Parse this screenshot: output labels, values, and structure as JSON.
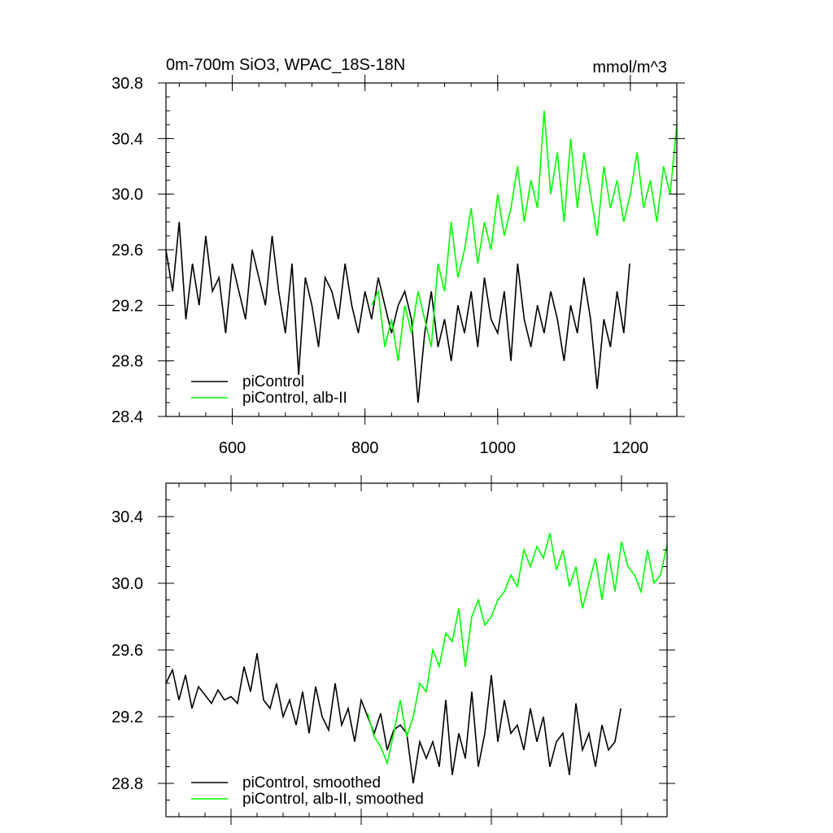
{
  "chart_data": [
    {
      "type": "line",
      "title": "0m-700m SiO3, WPAC_18S-18N",
      "units": "mmol/m^3",
      "xlim": [
        500,
        1270
      ],
      "ylim": [
        28.4,
        30.8
      ],
      "xticks": [
        600,
        800,
        1000,
        1200
      ],
      "xtick_labels": [
        "600",
        "800",
        "1000",
        "1200"
      ],
      "yticks": [
        28.4,
        28.8,
        29.2,
        29.6,
        30.0,
        30.4,
        30.8
      ],
      "ytick_labels": [
        "28.4",
        "28.8",
        "29.2",
        "29.6",
        "30.0",
        "30.4",
        "30.8"
      ],
      "legend_position": "bottom-left",
      "series": [
        {
          "name": "piControl",
          "color": "#000000",
          "x": [
            500,
            510,
            520,
            530,
            540,
            550,
            560,
            570,
            580,
            590,
            600,
            610,
            620,
            630,
            640,
            650,
            660,
            670,
            680,
            690,
            700,
            710,
            720,
            730,
            740,
            750,
            760,
            770,
            780,
            790,
            800,
            810,
            820,
            830,
            840,
            850,
            860,
            870,
            880,
            890,
            900,
            910,
            920,
            930,
            940,
            950,
            960,
            970,
            980,
            990,
            1000,
            1010,
            1020,
            1030,
            1040,
            1050,
            1060,
            1070,
            1080,
            1090,
            1100,
            1110,
            1120,
            1130,
            1140,
            1150,
            1160,
            1170,
            1180,
            1190,
            1199
          ],
          "values": [
            29.6,
            29.3,
            29.8,
            29.1,
            29.5,
            29.2,
            29.7,
            29.3,
            29.4,
            29.0,
            29.5,
            29.3,
            29.1,
            29.6,
            29.4,
            29.2,
            29.7,
            29.3,
            29.0,
            29.5,
            28.7,
            29.4,
            29.2,
            28.9,
            29.4,
            29.3,
            29.1,
            29.5,
            29.2,
            29.0,
            29.3,
            29.1,
            29.4,
            29.2,
            29.0,
            29.2,
            29.3,
            29.1,
            28.5,
            29.0,
            29.3,
            28.9,
            29.1,
            28.8,
            29.2,
            29.0,
            29.3,
            28.9,
            29.4,
            29.1,
            29.0,
            29.3,
            28.8,
            29.5,
            29.1,
            28.9,
            29.2,
            29.0,
            29.3,
            29.1,
            28.8,
            29.2,
            29.0,
            29.4,
            29.1,
            28.6,
            29.1,
            28.9,
            29.3,
            29.0,
            29.5
          ]
        },
        {
          "name": "piControl, alb-II",
          "color": "#00ff00",
          "x": [
            810,
            820,
            830,
            840,
            850,
            860,
            870,
            880,
            890,
            900,
            910,
            920,
            930,
            940,
            950,
            960,
            970,
            980,
            990,
            1000,
            1010,
            1020,
            1030,
            1040,
            1050,
            1060,
            1070,
            1080,
            1090,
            1100,
            1110,
            1120,
            1130,
            1140,
            1150,
            1160,
            1170,
            1180,
            1190,
            1200,
            1210,
            1220,
            1230,
            1240,
            1250,
            1260,
            1270
          ],
          "values": [
            29.2,
            29.3,
            28.9,
            29.1,
            28.8,
            29.2,
            29.0,
            29.3,
            29.1,
            28.9,
            29.5,
            29.3,
            29.8,
            29.4,
            29.6,
            29.9,
            29.5,
            29.8,
            29.6,
            30.0,
            29.7,
            29.9,
            30.2,
            29.8,
            30.1,
            29.9,
            30.6,
            30.0,
            30.3,
            29.8,
            30.4,
            29.9,
            30.3,
            30.0,
            29.7,
            30.2,
            29.9,
            30.1,
            29.8,
            30.0,
            30.3,
            29.9,
            30.1,
            29.8,
            30.2,
            30.0,
            30.5
          ]
        }
      ]
    },
    {
      "type": "line",
      "title": "",
      "units": "",
      "xlim": [
        500,
        1270
      ],
      "ylim": [
        28.6,
        30.6
      ],
      "xticks": [
        600,
        800,
        1000,
        1200
      ],
      "xtick_labels": [
        "",
        "",
        "",
        ""
      ],
      "yticks": [
        28.8,
        29.2,
        29.6,
        30.0,
        30.4
      ],
      "ytick_labels": [
        "28.8",
        "29.2",
        "29.6",
        "30.0",
        "30.4"
      ],
      "legend_position": "bottom-left",
      "series": [
        {
          "name": "piControl, smoothed",
          "color": "#000000",
          "x": [
            500,
            510,
            520,
            530,
            540,
            550,
            560,
            570,
            580,
            590,
            600,
            610,
            620,
            630,
            640,
            650,
            660,
            670,
            680,
            690,
            700,
            710,
            720,
            730,
            740,
            750,
            760,
            770,
            780,
            790,
            800,
            810,
            820,
            830,
            840,
            850,
            860,
            870,
            880,
            890,
            900,
            910,
            920,
            930,
            940,
            950,
            960,
            970,
            980,
            990,
            1000,
            1010,
            1020,
            1030,
            1040,
            1050,
            1060,
            1070,
            1080,
            1090,
            1100,
            1110,
            1120,
            1130,
            1140,
            1150,
            1160,
            1170,
            1180,
            1190,
            1199
          ],
          "values": [
            29.4,
            29.48,
            29.3,
            29.45,
            29.25,
            29.38,
            29.33,
            29.28,
            29.36,
            29.3,
            29.32,
            29.28,
            29.5,
            29.35,
            29.58,
            29.3,
            29.25,
            29.4,
            29.2,
            29.3,
            29.15,
            29.35,
            29.1,
            29.38,
            29.2,
            29.12,
            29.4,
            29.15,
            29.25,
            29.05,
            29.3,
            29.2,
            29.1,
            29.22,
            29.0,
            29.12,
            29.15,
            29.1,
            28.8,
            29.05,
            28.95,
            29.05,
            28.9,
            29.3,
            28.85,
            29.1,
            28.95,
            29.35,
            28.9,
            29.1,
            29.45,
            29.05,
            29.3,
            29.1,
            29.15,
            29.0,
            29.25,
            29.05,
            29.2,
            28.9,
            29.05,
            29.1,
            28.85,
            29.28,
            29.0,
            29.1,
            28.9,
            29.15,
            29.0,
            29.05,
            29.25
          ]
        },
        {
          "name": "piControl, alb-II, smoothed",
          "color": "#00ff00",
          "x": [
            810,
            820,
            830,
            840,
            850,
            860,
            870,
            880,
            890,
            900,
            910,
            920,
            930,
            940,
            950,
            960,
            970,
            980,
            990,
            1000,
            1010,
            1020,
            1030,
            1040,
            1050,
            1060,
            1070,
            1080,
            1090,
            1100,
            1110,
            1120,
            1130,
            1140,
            1150,
            1160,
            1170,
            1180,
            1190,
            1200,
            1210,
            1220,
            1230,
            1240,
            1250,
            1260,
            1270
          ],
          "values": [
            29.22,
            29.08,
            29.02,
            28.92,
            29.1,
            29.3,
            29.08,
            29.2,
            29.4,
            29.35,
            29.6,
            29.5,
            29.7,
            29.65,
            29.85,
            29.5,
            29.8,
            29.9,
            29.75,
            29.8,
            29.9,
            29.95,
            30.05,
            29.98,
            30.2,
            30.1,
            30.22,
            30.15,
            30.3,
            30.08,
            30.2,
            29.98,
            30.1,
            29.85,
            30.0,
            30.15,
            29.9,
            30.18,
            29.95,
            30.25,
            30.1,
            30.05,
            29.95,
            30.2,
            30.0,
            30.05,
            30.23
          ]
        }
      ]
    }
  ]
}
